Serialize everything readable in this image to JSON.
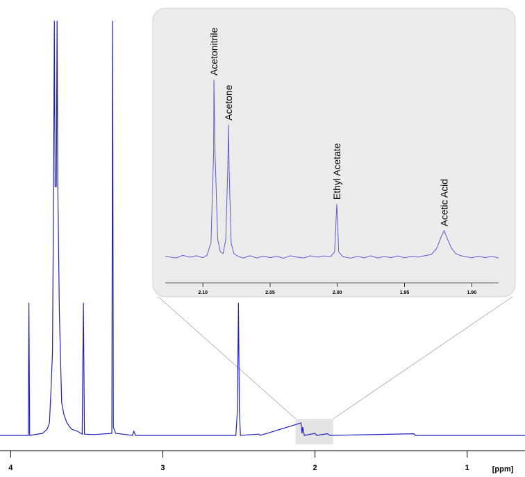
{
  "chart_data": [
    {
      "type": "line",
      "x_label": "[ppm]",
      "xlim": [
        4.07,
        0.62
      ],
      "ylim": [
        0,
        100
      ],
      "xticks": [
        4,
        3,
        2,
        1
      ],
      "color": "#2020c0",
      "series": [
        {
          "x": [
            4.07,
            3.9,
            3.885,
            3.88,
            3.875,
            3.79,
            3.76,
            3.745,
            3.735,
            3.725,
            3.718,
            3.713,
            3.708,
            3.7,
            3.695,
            3.69,
            3.68,
            3.665,
            3.65,
            3.63,
            3.6,
            3.56,
            3.53,
            3.522,
            3.515,
            3.45,
            3.335,
            3.33,
            3.325,
            3.31,
            3.2,
            3.19,
            3.18,
            2.52,
            2.51,
            2.503,
            2.497,
            2.49,
            2.37,
            2.36,
            2.092,
            2.085,
            2.081,
            2.07,
            2.0,
            1.99,
            1.92,
            1.9,
            1.35,
            1.34,
            0.62
          ],
          "values": [
            0,
            0,
            0,
            32,
            0,
            0.5,
            1.5,
            3,
            11,
            20,
            60,
            100,
            60,
            60,
            100,
            60,
            30,
            8,
            5,
            3,
            1.5,
            1,
            0.3,
            32,
            0.3,
            0.2,
            0.5,
            100,
            2,
            0.5,
            0,
            1,
            0,
            0,
            6,
            32,
            6,
            0,
            0.3,
            0,
            3,
            0.5,
            2,
            0,
            0.5,
            0,
            0.4,
            0,
            0.4,
            0,
            0
          ]
        }
      ]
    },
    {
      "type": "line",
      "xlim": [
        2.128,
        1.88
      ],
      "ylim": [
        -2,
        100
      ],
      "color": "#5a5ad0",
      "xticks": [
        {
          "value": 2.1,
          "label": "2.10"
        },
        {
          "value": 2.05,
          "label": "2.05"
        },
        {
          "value": 2.0,
          "label": "2.00"
        },
        {
          "value": 1.95,
          "label": "1.95"
        },
        {
          "value": 1.9,
          "label": "1.90"
        }
      ],
      "series": [
        {
          "x": [
            2.128,
            2.12,
            2.115,
            2.11,
            2.105,
            2.1,
            2.097,
            2.094,
            2.092,
            2.0918,
            2.091,
            2.089,
            2.087,
            2.085,
            2.083,
            2.0815,
            2.081,
            2.0805,
            2.079,
            2.077,
            2.074,
            2.07,
            2.065,
            2.06,
            2.055,
            2.05,
            2.045,
            2.04,
            2.035,
            2.03,
            2.025,
            2.02,
            2.015,
            2.01,
            2.005,
            2.002,
            2.001,
            2.0004,
            1.9998,
            1.999,
            1.996,
            1.99,
            1.985,
            1.98,
            1.975,
            1.97,
            1.965,
            1.96,
            1.955,
            1.95,
            1.945,
            1.94,
            1.935,
            1.93,
            1.926,
            1.923,
            1.9206,
            1.918,
            1.915,
            1.912,
            1.908,
            1.9,
            1.895,
            1.89,
            1.885,
            1.88
          ],
          "values": [
            0.5,
            -0.5,
            1,
            0,
            0.8,
            -0.3,
            1,
            8,
            60,
            100,
            60,
            10,
            3,
            2,
            10,
            50,
            74.7,
            50,
            8,
            2,
            0.5,
            -0.5,
            0.8,
            -0.5,
            0.6,
            -0.3,
            0.5,
            -0.6,
            0.8,
            0,
            -0.5,
            0.8,
            0,
            0.7,
            0.3,
            3,
            20,
            30,
            20,
            3,
            0.3,
            -0.6,
            0.5,
            -0.4,
            0.8,
            -0.5,
            0.4,
            -0.3,
            0.7,
            -0.4,
            0.5,
            0,
            0.8,
            1.5,
            5,
            11,
            15,
            10,
            5,
            2,
            0.8,
            -0.4,
            0.6,
            -0.3,
            0.5,
            -0.5
          ]
        }
      ],
      "peaks": [
        {
          "label": "Acetonitrile",
          "x": 2.0918,
          "y": 100
        },
        {
          "label": "Acetone",
          "x": 2.081,
          "y": 74.7
        },
        {
          "label": "Ethyl Acetate",
          "x": 2.0004,
          "y": 30
        },
        {
          "label": "Acetic Acid",
          "x": 1.9206,
          "y": 15
        }
      ]
    }
  ]
}
